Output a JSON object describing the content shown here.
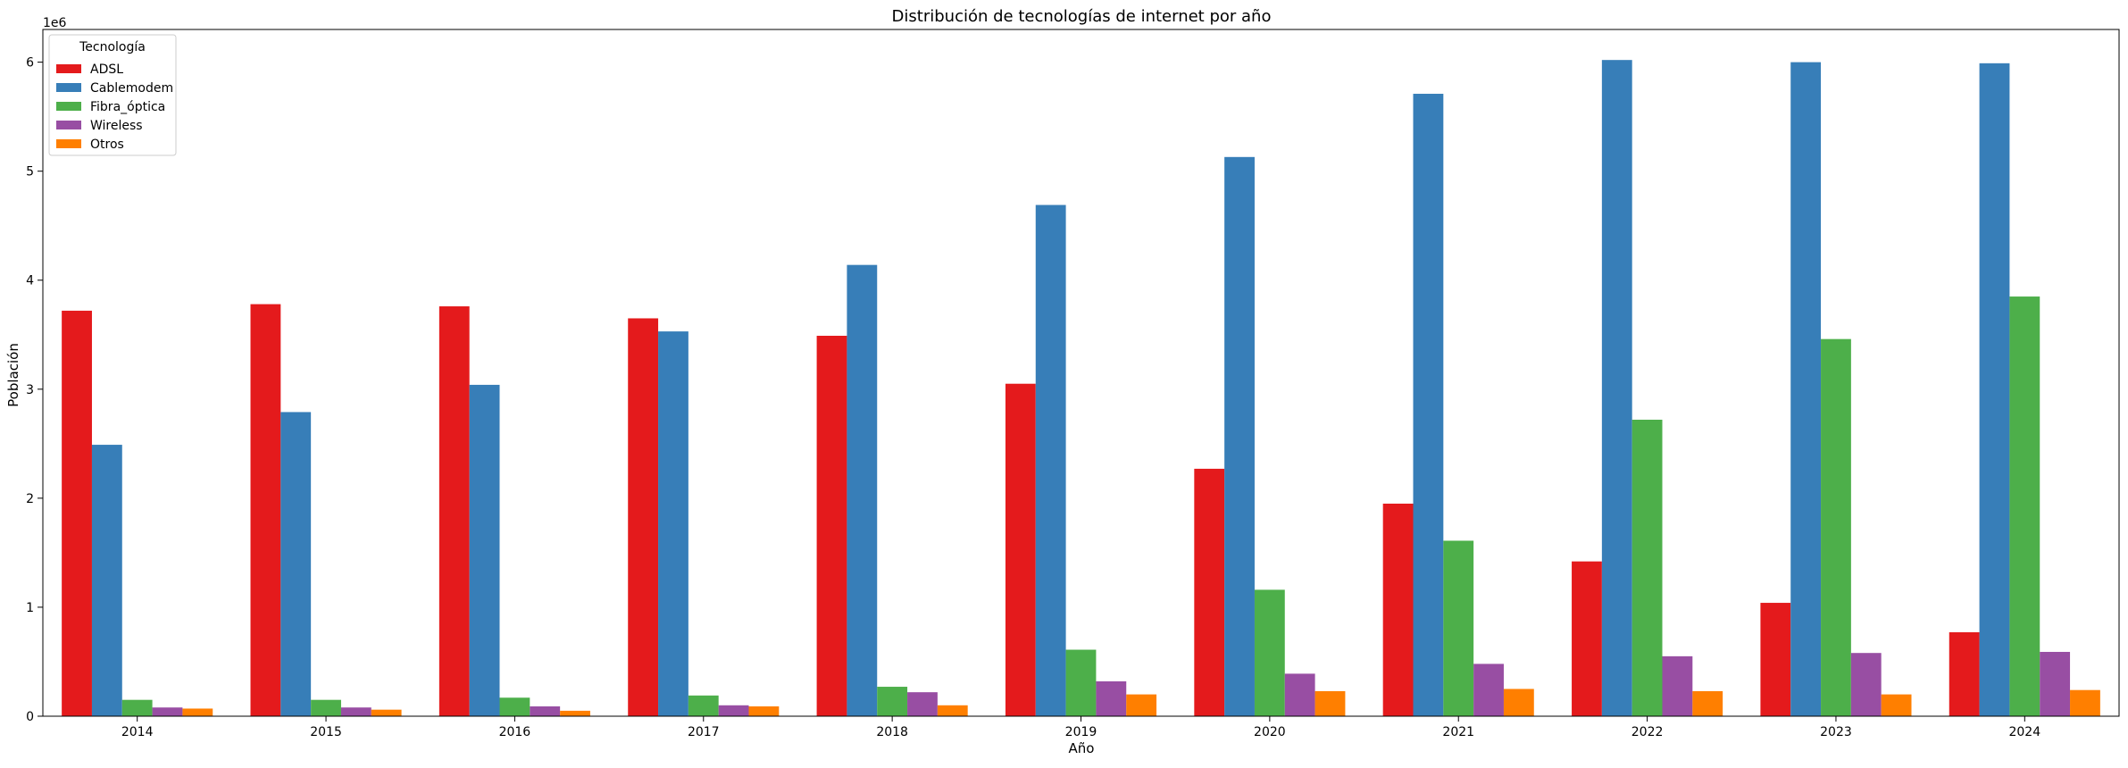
{
  "chart_data": {
    "type": "bar",
    "title": "Distribución de tecnologías de internet por año",
    "xlabel": "Año",
    "ylabel": "Población",
    "y_offset_label": "1e6",
    "ylim": [
      0,
      6300000
    ],
    "yticks": [
      0,
      1000000,
      2000000,
      3000000,
      4000000,
      5000000,
      6000000
    ],
    "ytick_labels": [
      "0",
      "1",
      "2",
      "3",
      "4",
      "5",
      "6"
    ],
    "grid": false,
    "legend": {
      "title": "Tecnología",
      "placement": "top-left"
    },
    "categories": [
      "2014",
      "2015",
      "2016",
      "2017",
      "2018",
      "2019",
      "2020",
      "2021",
      "2022",
      "2023",
      "2024"
    ],
    "series": [
      {
        "name": "ADSL",
        "color": "#e41a1c",
        "values": [
          3720000,
          3780000,
          3760000,
          3650000,
          3490000,
          3050000,
          2270000,
          1950000,
          1420000,
          1040000,
          770000
        ]
      },
      {
        "name": "Cablemodem",
        "color": "#377eb8",
        "values": [
          2490000,
          2790000,
          3040000,
          3530000,
          4140000,
          4690000,
          5130000,
          5710000,
          6020000,
          6000000,
          5990000
        ]
      },
      {
        "name": "Fibra_óptica",
        "color": "#4daf4a",
        "values": [
          150000,
          150000,
          170000,
          190000,
          270000,
          610000,
          1160000,
          1610000,
          2720000,
          3460000,
          3850000
        ]
      },
      {
        "name": "Wireless",
        "color": "#984ea3",
        "values": [
          80000,
          80000,
          90000,
          100000,
          220000,
          320000,
          390000,
          480000,
          550000,
          580000,
          590000
        ]
      },
      {
        "name": "Otros",
        "color": "#ff7f00",
        "values": [
          70000,
          60000,
          50000,
          90000,
          100000,
          200000,
          230000,
          250000,
          230000,
          200000,
          240000
        ]
      }
    ]
  }
}
